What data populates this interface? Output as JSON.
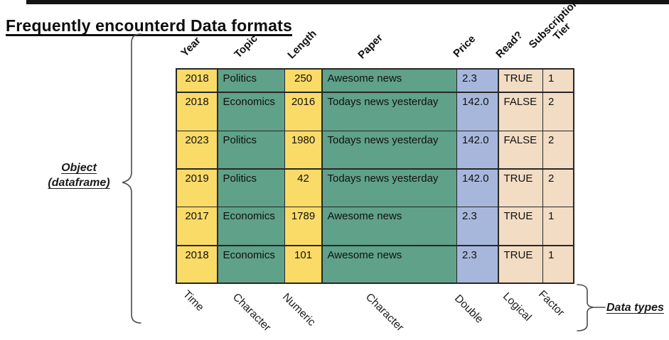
{
  "title": "Frequently encounterd Data formats",
  "table": {
    "columns": [
      {
        "label": "Year",
        "type": "Time",
        "color": "#FBDB68",
        "align": "center"
      },
      {
        "label": "Topic",
        "type": "Character",
        "color": "#5FA189",
        "align": "left"
      },
      {
        "label": "Length",
        "type": "Numeric",
        "color": "#FBDB68",
        "align": "center"
      },
      {
        "label": "Paper",
        "type": "Character",
        "color": "#5FA189",
        "align": "left"
      },
      {
        "label": "Price",
        "type": "Double",
        "color": "#A7B7DC",
        "align": "left"
      },
      {
        "label": "Read?",
        "type": "Logical",
        "color": "#F2DCC4",
        "align": "left"
      },
      {
        "label": "Subscription Tier",
        "type": "Factor",
        "color": "#F2DCC4",
        "align": "left",
        "header_lines": [
          "Subscription",
          "Tier"
        ]
      }
    ],
    "rows": [
      [
        "2018",
        "Politics",
        "250",
        "Awesome news",
        "2.3",
        "TRUE",
        "1"
      ],
      [
        "2018",
        "Economics",
        "2016",
        "Todays news yesterday",
        "142.0",
        "FALSE",
        "2"
      ],
      [
        "2023",
        "Politics",
        "1980",
        "Todays news yesterday",
        "142.0",
        "FALSE",
        "2"
      ],
      [
        "2019",
        "Politics",
        "42",
        "Todays news yesterday",
        "142.0",
        "TRUE",
        "2"
      ],
      [
        "2017",
        "Economics",
        "1789",
        "Awesome news",
        "2.3",
        "TRUE",
        "1"
      ],
      [
        "2018",
        "Economics",
        "101",
        "Awesome news",
        "2.3",
        "TRUE",
        "1"
      ]
    ]
  },
  "annotations": {
    "object_label_line1": "Object",
    "object_label_line2": "(dataframe)",
    "data_types_label": "Data types"
  },
  "colors": {
    "yellow_column": "#FBDB68",
    "green_column": "#5FA189",
    "blue_column": "#A7B7DC",
    "peach_column": "#F2DCC4",
    "table_border": "#272727",
    "brace_stroke": "#4a4a4a"
  }
}
